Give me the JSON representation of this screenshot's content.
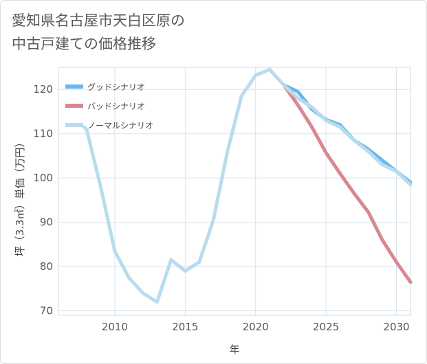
{
  "title_lines": [
    "愛知県名古屋市天白区原の",
    "中古戸建ての価格推移"
  ],
  "chart_data": {
    "type": "line",
    "xlabel": "年",
    "ylabel": "坪（3.3㎡）単価（万円）",
    "xlim": [
      2006,
      2031
    ],
    "ylim": [
      69,
      125
    ],
    "xticks": [
      2010,
      2015,
      2020,
      2025,
      2030
    ],
    "yticks": [
      70,
      80,
      90,
      100,
      110,
      120
    ],
    "grid": true,
    "legend_position": "top-left",
    "series": [
      {
        "name": "グッドシナリオ",
        "color": "#6cb4ea",
        "x": [
          2022,
          2023,
          2024,
          2025,
          2026,
          2027,
          2028,
          2029,
          2030,
          2031
        ],
        "y": [
          121.0,
          119.5,
          115.5,
          113.2,
          112.0,
          108.5,
          106.5,
          104.0,
          101.5,
          99.0
        ]
      },
      {
        "name": "バッドシナリオ",
        "color": "#d88891",
        "x": [
          2022,
          2023,
          2024,
          2025,
          2026,
          2027,
          2028,
          2029,
          2030,
          2031
        ],
        "y": [
          121.0,
          116.5,
          111.5,
          105.7,
          101.0,
          96.5,
          92.3,
          86.0,
          81.0,
          76.5
        ]
      },
      {
        "name": "ノーマルシナリオ",
        "color": "#b9dced",
        "x": [
          2007.8,
          2008,
          2009,
          2010,
          2011,
          2012,
          2013,
          2014,
          2015,
          2016,
          2017,
          2018,
          2019,
          2020,
          2021,
          2022,
          2023,
          2024,
          2025,
          2026,
          2027,
          2028,
          2029,
          2030,
          2031
        ],
        "y": [
          111.5,
          111.0,
          98.0,
          83.5,
          77.5,
          74.0,
          72.0,
          81.5,
          79.0,
          81.0,
          90.5,
          106.0,
          118.5,
          123.2,
          124.5,
          121.0,
          118.0,
          116.0,
          113.0,
          111.5,
          108.5,
          106.0,
          103.0,
          101.5,
          98.5
        ]
      }
    ]
  }
}
